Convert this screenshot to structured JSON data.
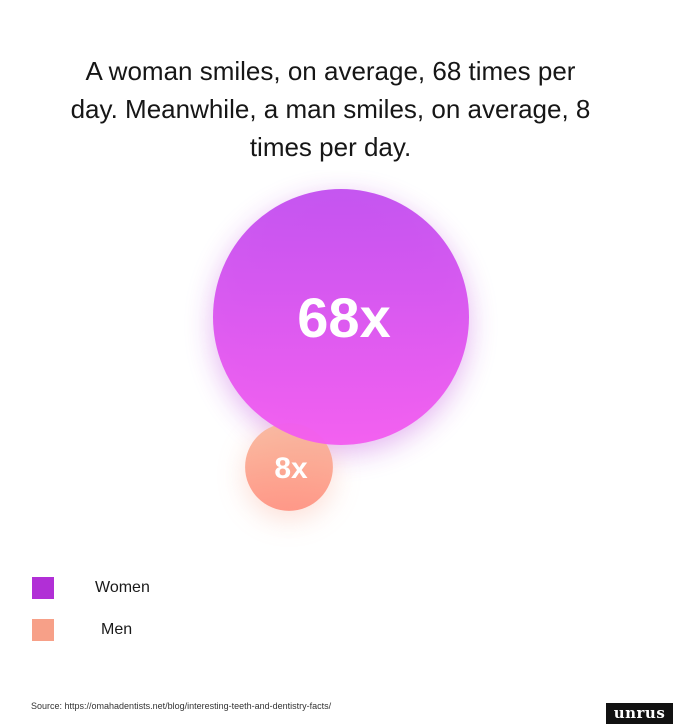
{
  "title": "A woman smiles, on average, 68 times per day. Meanwhile, a man smiles, on average, 8 times per day.",
  "chart_data": {
    "type": "bubble",
    "title": "A woman smiles, on average, 68 times per day. Meanwhile, a man smiles, on average, 8 times per day.",
    "unit": "times per day",
    "series": [
      {
        "name": "Women",
        "value": 68,
        "label": "68x",
        "color": "#b12fd6"
      },
      {
        "name": "Men",
        "value": 8,
        "label": "8x",
        "color": "#f7a088"
      }
    ]
  },
  "legend": {
    "items": [
      {
        "label": "Women",
        "color": "#b12fd6"
      },
      {
        "label": "Men",
        "color": "#f7a088"
      }
    ]
  },
  "source": "Source: https://omahadentists.net/blog/interesting-teeth-and-dentistry-facts/",
  "logo": "unrus"
}
